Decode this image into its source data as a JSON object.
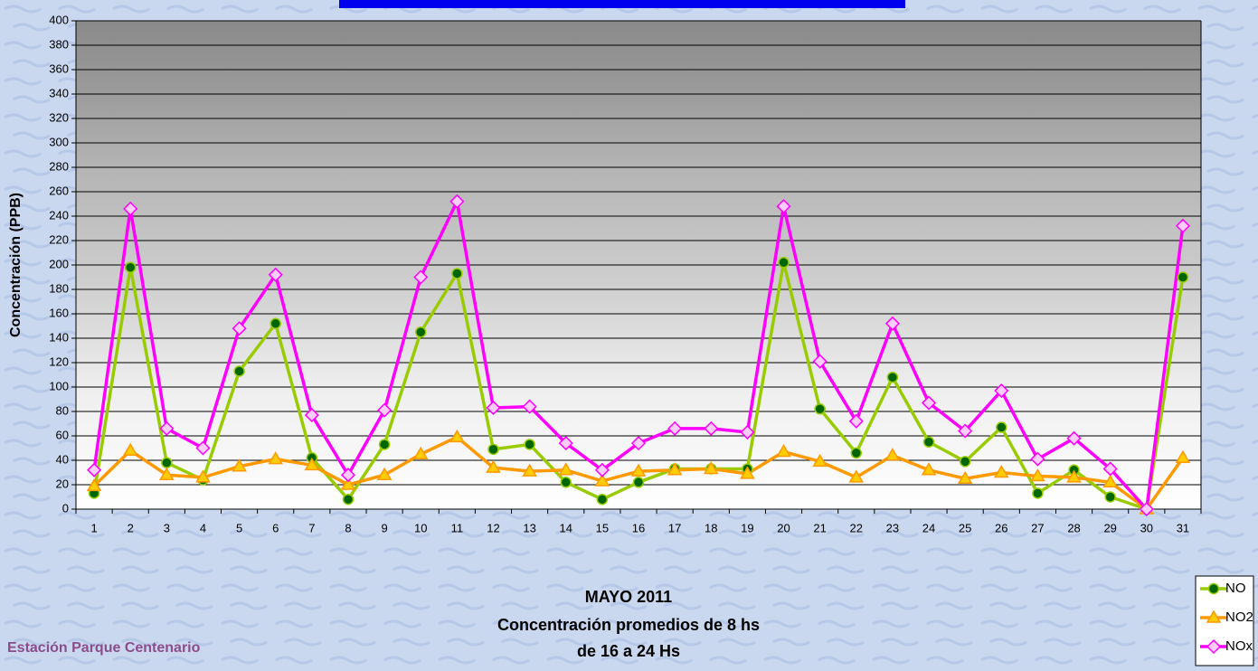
{
  "chart_data": {
    "type": "line",
    "title": "MAYO 2011",
    "subtitle": [
      "Concentración promedios de 8 hs",
      "de 16 a 24 Hs"
    ],
    "annotations": [
      "Estación Parque Centenario"
    ],
    "y_label": "Concentración  (PPB)",
    "categories": [
      "1",
      "2",
      "3",
      "4",
      "5",
      "6",
      "7",
      "8",
      "9",
      "10",
      "11",
      "12",
      "13",
      "14",
      "15",
      "16",
      "17",
      "18",
      "19",
      "20",
      "21",
      "22",
      "23",
      "24",
      "25",
      "26",
      "27",
      "28",
      "29",
      "30",
      "31"
    ],
    "series": [
      {
        "name": "NO",
        "color": "#99cc00",
        "marker": "circle",
        "values": [
          13,
          198,
          38,
          24,
          113,
          152,
          42,
          8,
          53,
          145,
          193,
          49,
          53,
          22,
          8,
          22,
          33,
          33,
          33,
          202,
          82,
          46,
          108,
          55,
          39,
          67,
          13,
          32,
          10,
          0,
          190
        ]
      },
      {
        "name": "NO2",
        "color": "#ff9900",
        "marker": "triangle",
        "values": [
          19,
          48,
          28,
          26,
          35,
          41,
          36,
          20,
          28,
          45,
          59,
          34,
          31,
          32,
          23,
          31,
          32,
          33,
          29,
          47,
          39,
          26,
          44,
          32,
          25,
          30,
          27,
          26,
          22,
          0,
          42
        ]
      },
      {
        "name": "NOx",
        "color": "#ff00ff",
        "marker": "diamond",
        "values": [
          32,
          246,
          66,
          50,
          148,
          192,
          77,
          28,
          81,
          190,
          252,
          83,
          84,
          54,
          32,
          54,
          66,
          66,
          63,
          248,
          121,
          72,
          152,
          87,
          64,
          97,
          41,
          58,
          33,
          0,
          232
        ]
      }
    ],
    "ylim": [
      0,
      400
    ],
    "yticks": [
      0,
      20,
      40,
      60,
      80,
      100,
      120,
      140,
      160,
      180,
      200,
      220,
      240,
      260,
      280,
      300,
      320,
      340,
      360,
      380,
      400
    ],
    "grid": true,
    "legend": "bottom-right"
  }
}
